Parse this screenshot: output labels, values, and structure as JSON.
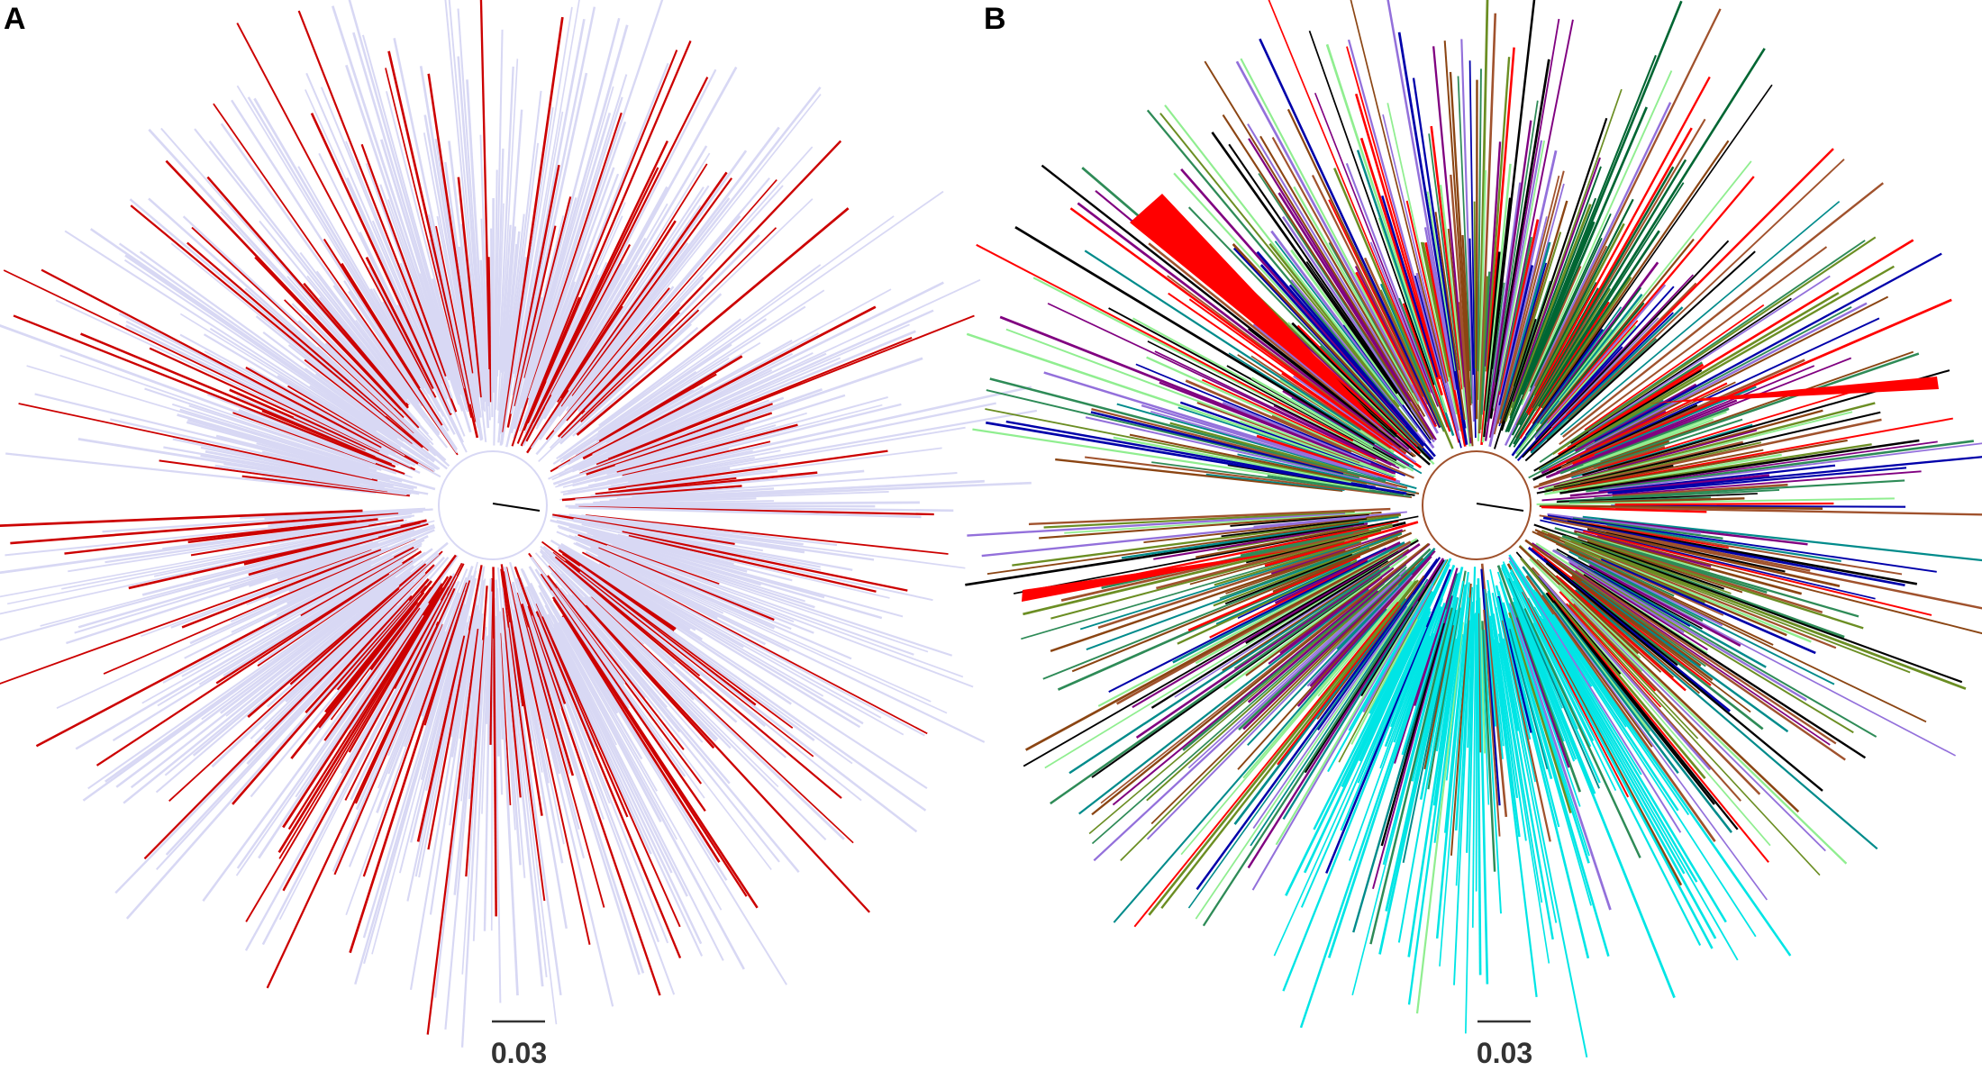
{
  "panels": [
    {
      "label": "A",
      "scale_label": "0.03"
    },
    {
      "label": "B",
      "scale_label": "0.03"
    }
  ]
}
